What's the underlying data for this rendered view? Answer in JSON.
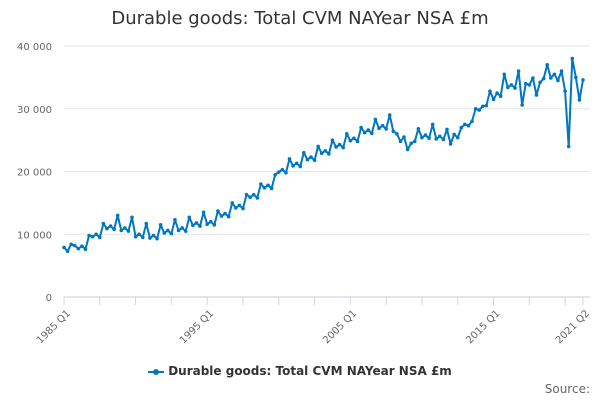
{
  "chart_data": {
    "type": "line",
    "title": "Durable goods: Total CVM NAYear NSA £m",
    "xlabel": "",
    "ylabel": "",
    "ylim": [
      0,
      40000
    ],
    "y_ticks": [
      "0",
      "10 000",
      "20 000",
      "30 000",
      "40 000"
    ],
    "x_tick_labels": [
      "1985 Q1",
      "1995 Q1",
      "2005 Q1",
      "2015 Q1",
      "2021 Q2"
    ],
    "x_tick_label_indices": [
      0,
      40,
      80,
      120,
      145
    ],
    "start_year": 1985,
    "grid": true,
    "legend_position": "bottom",
    "series": [
      {
        "name": "Durable goods: Total CVM NAYear NSA £m",
        "color": "#0077c0",
        "values": [
          7900,
          7300,
          8400,
          8200,
          7700,
          8100,
          7600,
          9800,
          9600,
          10000,
          9500,
          11700,
          10900,
          11300,
          10800,
          13000,
          10600,
          11000,
          10500,
          12700,
          9600,
          10000,
          9500,
          11700,
          9400,
          9800,
          9300,
          11500,
          10200,
          10600,
          10100,
          12300,
          10600,
          11000,
          10500,
          12700,
          11400,
          11800,
          11300,
          13500,
          11600,
          12000,
          11500,
          13700,
          12900,
          13300,
          12800,
          15000,
          14200,
          14600,
          14100,
          16300,
          15900,
          16300,
          15800,
          18000,
          17400,
          17800,
          17300,
          19500,
          19900,
          20300,
          19800,
          22000,
          20900,
          21300,
          20800,
          23000,
          21900,
          22300,
          21800,
          24000,
          22900,
          23300,
          22800,
          25000,
          23900,
          24300,
          23800,
          26000,
          24900,
          25300,
          24800,
          27000,
          26200,
          26600,
          26100,
          28300,
          26900,
          27300,
          26800,
          29000,
          26400,
          26000,
          24800,
          25500,
          23500,
          24500,
          24800,
          26800,
          25400,
          25800,
          25300,
          27500,
          25200,
          25600,
          25100,
          26700,
          24400,
          25900,
          25400,
          27000,
          27500,
          27300,
          28000,
          30000,
          29800,
          30400,
          30500,
          32800,
          31500,
          32500,
          32000,
          35500,
          33400,
          33800,
          33300,
          36000,
          30600,
          34000,
          33800,
          34900,
          32200,
          34200,
          34800,
          37000,
          34900,
          35500,
          34500,
          36000,
          32800,
          24000,
          38000,
          35000,
          31400,
          34600
        ]
      }
    ]
  },
  "source_label": "Source:"
}
